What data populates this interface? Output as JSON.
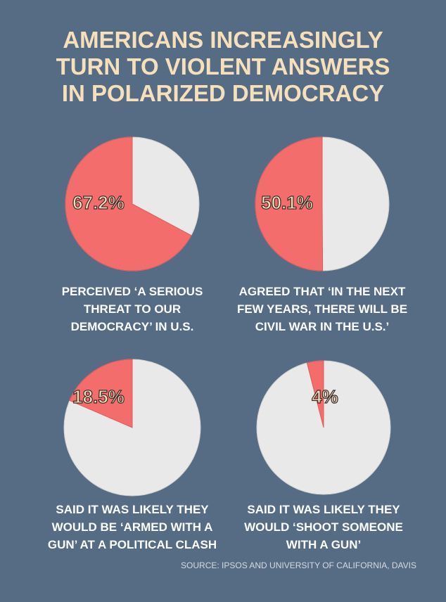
{
  "title": [
    "AMERICANS INCREASINGLY",
    "TURN TO VIOLENT ANSWERS",
    "IN POLARIZED DEMOCRACY"
  ],
  "chart_data": [
    {
      "type": "pie",
      "values": [
        67.2
      ],
      "value_labels": [
        "67.2%"
      ],
      "color": "#f46d6d",
      "caption": [
        "PERCEIVED ‘A SERIOUS",
        "THREAT TO OUR",
        "DEMOCRACY’ IN U.S."
      ]
    },
    {
      "type": "pie",
      "values": [
        50.1
      ],
      "value_labels": [
        "50.1%"
      ],
      "color": "#f46d6d",
      "caption": [
        "AGREED THAT ‘IN THE NEXT",
        "FEW YEARS, THERE WILL BE",
        "CIVIL WAR IN THE U.S.’"
      ]
    },
    {
      "type": "pie",
      "values": [
        18.5
      ],
      "value_labels": [
        "18.5%"
      ],
      "color": "#f46d6d",
      "caption": [
        "SAID IT WAS LIKELY THEY",
        "WOULD BE ‘ARMED WITH A",
        "GUN’ AT A POLITICAL CLASH"
      ]
    },
    {
      "type": "pie",
      "values": [
        4
      ],
      "value_labels": [
        "4%"
      ],
      "color": "#f46d6d",
      "caption": [
        "SAID IT WAS LIKELY THEY",
        "WOULD ‘SHOOT SOMEONE",
        "WITH A GUN’"
      ]
    }
  ],
  "source": "SOURCE: IPSOS AND UNIVERSITY OF CALIFORNIA, DAVIS"
}
